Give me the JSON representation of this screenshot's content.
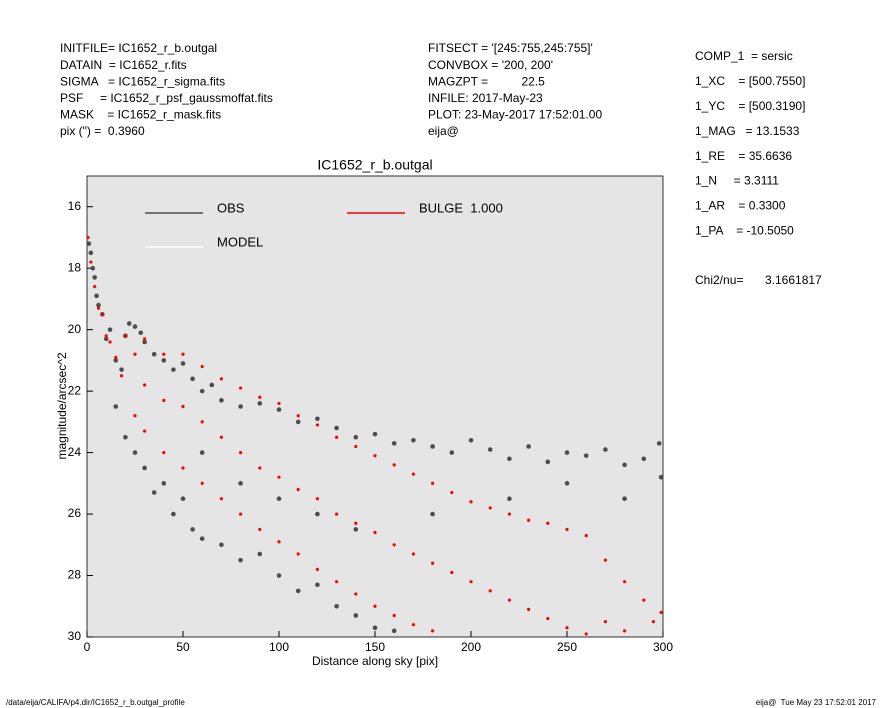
{
  "header": {
    "left": [
      "INITFILE= IC1652_r_b.outgal",
      "DATAIN  = IC1652_r.fits",
      "SIGMA   = IC1652_r_sigma.fits",
      "PSF     = IC1652_r_psf_gaussmoffat.fits",
      "MASK    = IC1652_r_mask.fits",
      "pix (\") =  0.3960"
    ],
    "middle": [
      "FITSECT = '[245:755,245:755]'",
      "CONVBOX = '200, 200'",
      "MAGZPT =          22.5",
      "INFILE: 2017-May-23",
      "PLOT: 23-May-2017 17:52:01.00",
      "eija@"
    ],
    "right": [
      "COMP_1  = sersic",
      "1_XC    = [500.7550]",
      "1_YC    = [500.3190]",
      "1_MAG   = 13.1533",
      "1_RE    = 35.6636",
      "1_N     = 3.3111",
      "1_AR    = 0.3300",
      "1_PA    = -10.5050"
    ],
    "chi_label": "Chi2/nu=",
    "chi_value": "3.1661817"
  },
  "chart_data": {
    "type": "scatter",
    "title": "IC1652_r_b.outgal",
    "x_label": "Distance along sky [pix]",
    "y_label": "magnitude/arcsec^2",
    "xlim": [
      0,
      300
    ],
    "xticks": [
      0,
      50,
      100,
      150,
      200,
      250,
      300
    ],
    "ylim": [
      30,
      15
    ],
    "yticks": [
      16,
      18,
      20,
      22,
      24,
      26,
      28,
      30
    ],
    "background": "#e5e5e5",
    "series": [
      {
        "name": "OBS",
        "color": "#4d4d4d",
        "x": [
          1,
          2,
          3,
          4,
          5,
          6,
          8,
          10,
          12,
          15,
          18,
          20,
          22,
          25,
          28,
          30,
          35,
          40,
          45,
          50,
          55,
          60,
          65,
          70,
          80,
          90,
          100,
          110,
          120,
          130,
          140,
          150,
          160,
          170,
          180,
          190,
          200,
          210,
          220,
          230,
          240,
          250,
          260,
          270,
          280,
          290,
          298,
          15,
          20,
          25,
          30,
          35,
          40,
          45,
          50,
          55,
          60,
          70,
          80,
          90,
          100,
          110,
          120,
          130,
          140,
          150,
          160,
          60,
          80,
          100,
          120,
          140,
          180,
          220,
          250,
          280,
          299
        ],
        "values": [
          17.2,
          17.5,
          18,
          18.3,
          18.9,
          19.2,
          19.5,
          20.3,
          20,
          21,
          21.3,
          20.2,
          19.8,
          19.9,
          20.1,
          20.4,
          20.8,
          21,
          21.3,
          21.1,
          21.6,
          22,
          21.8,
          22.3,
          22.5,
          22.4,
          22.6,
          23,
          22.9,
          23.2,
          23.5,
          23.4,
          23.7,
          23.6,
          23.8,
          24,
          23.6,
          23.9,
          24.2,
          23.8,
          24.3,
          24,
          24.1,
          23.9,
          24.4,
          24.2,
          23.7,
          22.5,
          23.5,
          24,
          24.5,
          25.3,
          25,
          26,
          25.5,
          26.5,
          26.8,
          27,
          27.5,
          27.3,
          28,
          28.5,
          28.3,
          29,
          29.3,
          29.7,
          29.8,
          24,
          25,
          25.5,
          26,
          26.5,
          26,
          25.5,
          25,
          25.5,
          24.8
        ]
      },
      {
        "name": "MODEL",
        "color": "#ffffff",
        "x": [],
        "values": []
      },
      {
        "name": "BULGE  1.000",
        "color": "#ff0000",
        "x": [
          0.5,
          2,
          4,
          6,
          8,
          10,
          12,
          15,
          18,
          20,
          25,
          25,
          30,
          30,
          30,
          40,
          40,
          40,
          50,
          50,
          50,
          60,
          60,
          60,
          70,
          70,
          70,
          80,
          80,
          80,
          90,
          90,
          90,
          100,
          100,
          100,
          110,
          110,
          110,
          120,
          120,
          120,
          130,
          130,
          130,
          140,
          140,
          140,
          150,
          150,
          150,
          160,
          160,
          160,
          170,
          170,
          170,
          180,
          180,
          180,
          190,
          190,
          200,
          200,
          210,
          210,
          220,
          220,
          230,
          230,
          240,
          240,
          250,
          250,
          260,
          260,
          270,
          270,
          280,
          280,
          290,
          295,
          299
        ],
        "values": [
          17,
          17.8,
          18.6,
          19.3,
          19.5,
          20.2,
          20.4,
          20.9,
          21.5,
          20.2,
          20.8,
          22.8,
          20.3,
          21.8,
          23.3,
          20.8,
          22.3,
          24,
          20.8,
          22.5,
          24.5,
          21.2,
          23,
          25,
          21.6,
          23.5,
          25.5,
          21.9,
          24,
          26,
          22.2,
          24.5,
          26.5,
          22.4,
          24.8,
          26.9,
          22.8,
          25.2,
          27.3,
          23.1,
          25.5,
          27.8,
          23.5,
          26,
          28.2,
          23.8,
          26.3,
          28.6,
          24.1,
          26.6,
          29,
          24.4,
          27,
          29.3,
          24.7,
          27.3,
          29.6,
          25,
          27.6,
          29.8,
          25.3,
          27.9,
          25.6,
          28.2,
          25.8,
          28.5,
          26,
          28.8,
          26.2,
          29.1,
          26.3,
          29.4,
          26.5,
          29.7,
          26.7,
          29.9,
          27.5,
          29.5,
          28.2,
          29.8,
          28.8,
          29.5,
          29.2
        ]
      }
    ]
  },
  "footer": {
    "path": "/data/eija/CALIFA/p4.dir/IC1652_r_b.outgal_profile",
    "stamp": "eija@  Tue May 23 17:52:01 2017"
  }
}
